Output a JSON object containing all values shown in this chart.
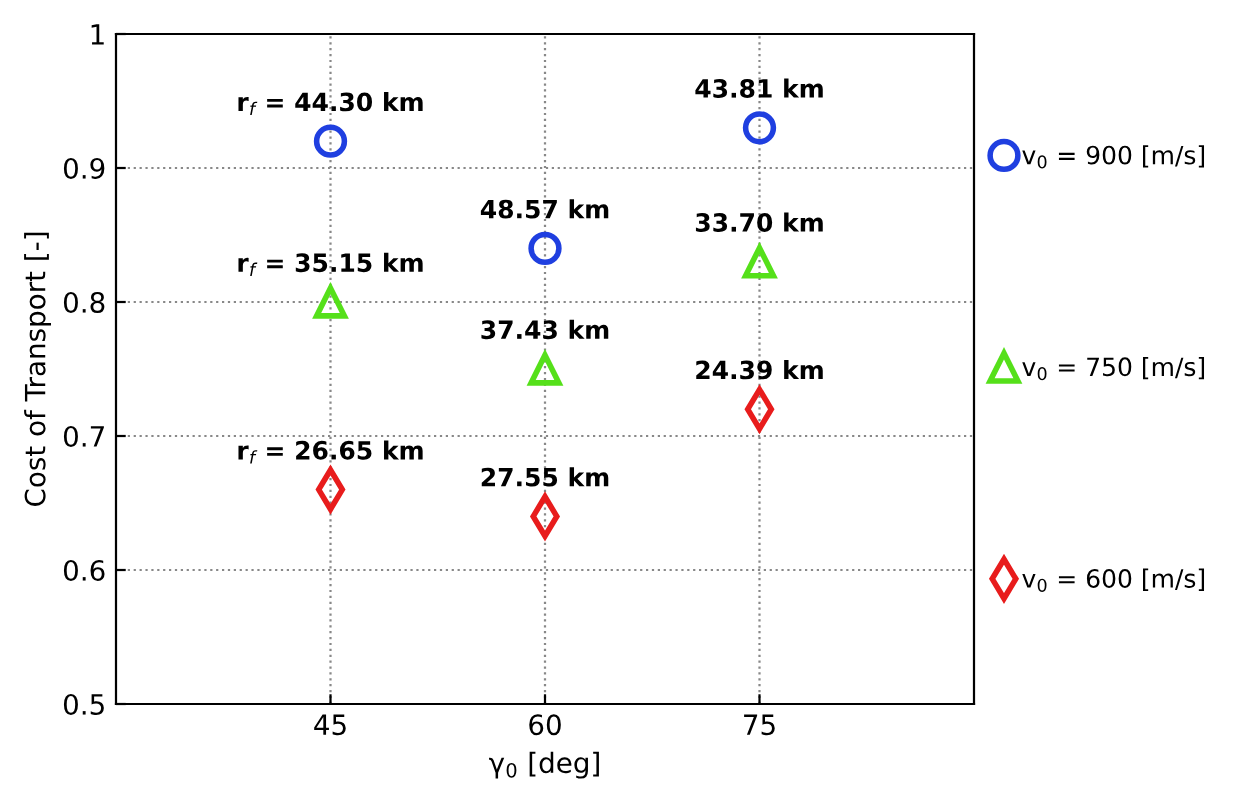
{
  "chart_data": {
    "type": "scatter",
    "xlabel": "γ$_{0}$ [deg]",
    "ylabel": "Cost of Transport [-]",
    "x": [
      45,
      60,
      75
    ],
    "xlim": [
      30,
      90
    ],
    "xticks": [
      45,
      60,
      75
    ],
    "ylim": [
      0.5,
      1
    ],
    "yticks": [
      0.5,
      0.6,
      0.7,
      0.8,
      0.9,
      1
    ],
    "grid": true,
    "legend": "right",
    "series": [
      {
        "name": "v$_{0}$ = 900 [m/s]",
        "color": "#1f3fe0",
        "marker": "circle",
        "values": [
          0.92,
          0.84,
          0.93
        ]
      },
      {
        "name": "v$_{0}$ = 750 [m/s]",
        "color": "#55e01a",
        "marker": "triangle",
        "values": [
          0.8,
          0.75,
          0.83
        ]
      },
      {
        "name": "v$_{0}$ = 600 [m/s]",
        "color": "#e81c1c",
        "marker": "diamond",
        "values": [
          0.66,
          0.64,
          0.72
        ]
      }
    ],
    "annotations": [
      {
        "text": "r$_{f}$ = 44.30 km",
        "x": 45,
        "y": 0.92
      },
      {
        "text": "48.57 km",
        "x": 60,
        "y": 0.84
      },
      {
        "text": "43.81 km",
        "x": 75,
        "y": 0.93
      },
      {
        "text": "r$_{f}$ = 35.15 km",
        "x": 45,
        "y": 0.8
      },
      {
        "text": "37.43 km",
        "x": 60,
        "y": 0.75
      },
      {
        "text": "33.70 km",
        "x": 75,
        "y": 0.83
      },
      {
        "text": "r$_{f}$ = 26.65 km",
        "x": 45,
        "y": 0.66
      },
      {
        "text": "27.55 km",
        "x": 60,
        "y": 0.64
      },
      {
        "text": "24.39 km",
        "x": 75,
        "y": 0.72
      }
    ]
  }
}
